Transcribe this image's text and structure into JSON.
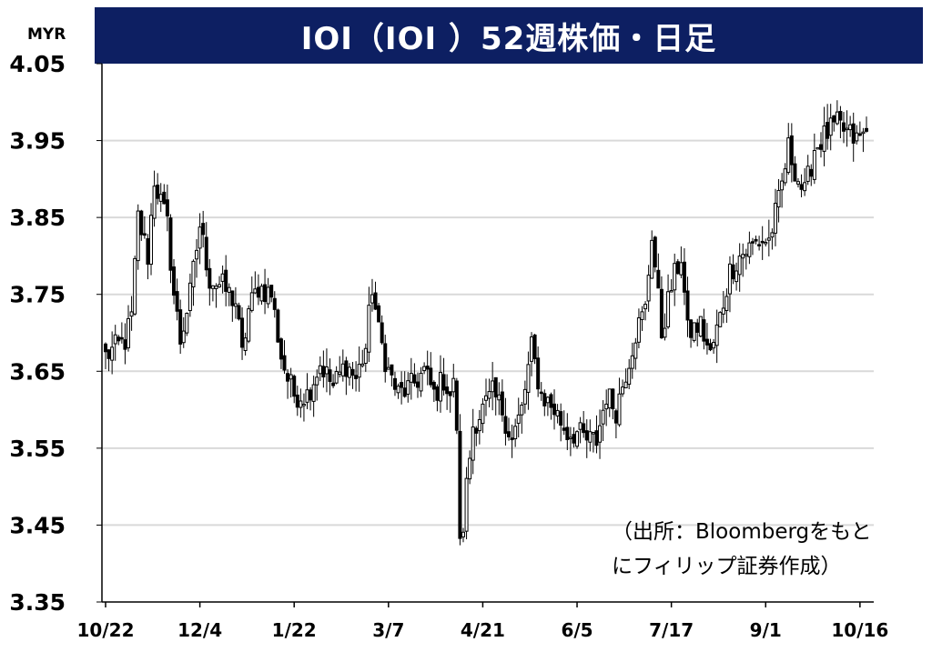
{
  "title": "IOI（IOI ）52週株価・日足",
  "unit": "MYR",
  "source_note": [
    "（出所：Bloombergをもと",
    "にフィリップ証券作成）"
  ],
  "colors": {
    "title_bg": "#0d1f62",
    "candle_up": "#ffffff",
    "candle_down": "#000000",
    "grid": "#d9d9d9"
  },
  "chart_data": {
    "type": "candlestick",
    "title": "IOI（IOI ）52週株価・日足",
    "ylabel": "MYR",
    "ylim": [
      3.35,
      4.05
    ],
    "y_ticks": [
      "4.05",
      "3.95",
      "3.85",
      "3.75",
      "3.65",
      "3.55",
      "3.45",
      "3.35"
    ],
    "x_ticks": [
      {
        "label": "10/22",
        "index": 0
      },
      {
        "label": "12/4",
        "index": 29
      },
      {
        "label": "1/22",
        "index": 58
      },
      {
        "label": "3/7",
        "index": 87
      },
      {
        "label": "4/21",
        "index": 116
      },
      {
        "label": "6/5",
        "index": 145
      },
      {
        "label": "7/17",
        "index": 174
      },
      {
        "label": "9/1",
        "index": 203
      },
      {
        "label": "10/16",
        "index": 232
      }
    ],
    "grid": true,
    "n_days": 235,
    "anchors": [
      [
        0,
        3.67
      ],
      [
        6,
        3.69
      ],
      [
        8,
        3.72
      ],
      [
        10,
        3.85
      ],
      [
        13,
        3.8
      ],
      [
        15,
        3.9
      ],
      [
        19,
        3.84
      ],
      [
        21,
        3.75
      ],
      [
        23,
        3.69
      ],
      [
        26,
        3.75
      ],
      [
        29,
        3.84
      ],
      [
        32,
        3.77
      ],
      [
        36,
        3.76
      ],
      [
        40,
        3.74
      ],
      [
        42,
        3.67
      ],
      [
        44,
        3.73
      ],
      [
        47,
        3.76
      ],
      [
        51,
        3.75
      ],
      [
        54,
        3.67
      ],
      [
        56,
        3.64
      ],
      [
        58,
        3.62
      ],
      [
        62,
        3.62
      ],
      [
        66,
        3.66
      ],
      [
        70,
        3.63
      ],
      [
        74,
        3.66
      ],
      [
        77,
        3.64
      ],
      [
        80,
        3.68
      ],
      [
        82,
        3.76
      ],
      [
        84,
        3.7
      ],
      [
        87,
        3.65
      ],
      [
        90,
        3.62
      ],
      [
        94,
        3.63
      ],
      [
        98,
        3.65
      ],
      [
        101,
        3.62
      ],
      [
        104,
        3.64
      ],
      [
        106,
        3.62
      ],
      [
        107,
        3.63
      ],
      [
        108,
        3.58
      ],
      [
        109,
        3.42
      ],
      [
        110,
        3.45
      ],
      [
        111,
        3.5
      ],
      [
        113,
        3.58
      ],
      [
        116,
        3.6
      ],
      [
        119,
        3.62
      ],
      [
        122,
        3.6
      ],
      [
        125,
        3.56
      ],
      [
        128,
        3.6
      ],
      [
        131,
        3.68
      ],
      [
        134,
        3.62
      ],
      [
        138,
        3.6
      ],
      [
        142,
        3.57
      ],
      [
        145,
        3.57
      ],
      [
        148,
        3.56
      ],
      [
        151,
        3.56
      ],
      [
        154,
        3.62
      ],
      [
        157,
        3.6
      ],
      [
        160,
        3.65
      ],
      [
        163,
        3.7
      ],
      [
        166,
        3.73
      ],
      [
        168,
        3.83
      ],
      [
        171,
        3.7
      ],
      [
        174,
        3.76
      ],
      [
        177,
        3.8
      ],
      [
        179,
        3.7
      ],
      [
        183,
        3.71
      ],
      [
        186,
        3.67
      ],
      [
        189,
        3.72
      ],
      [
        192,
        3.78
      ],
      [
        195,
        3.8
      ],
      [
        198,
        3.81
      ],
      [
        201,
        3.82
      ],
      [
        204,
        3.82
      ],
      [
        207,
        3.87
      ],
      [
        210,
        3.94
      ],
      [
        213,
        3.9
      ],
      [
        215,
        3.88
      ],
      [
        218,
        3.94
      ],
      [
        222,
        3.96
      ],
      [
        225,
        3.97
      ],
      [
        228,
        3.96
      ],
      [
        231,
        3.95
      ],
      [
        234,
        3.96
      ]
    ]
  }
}
